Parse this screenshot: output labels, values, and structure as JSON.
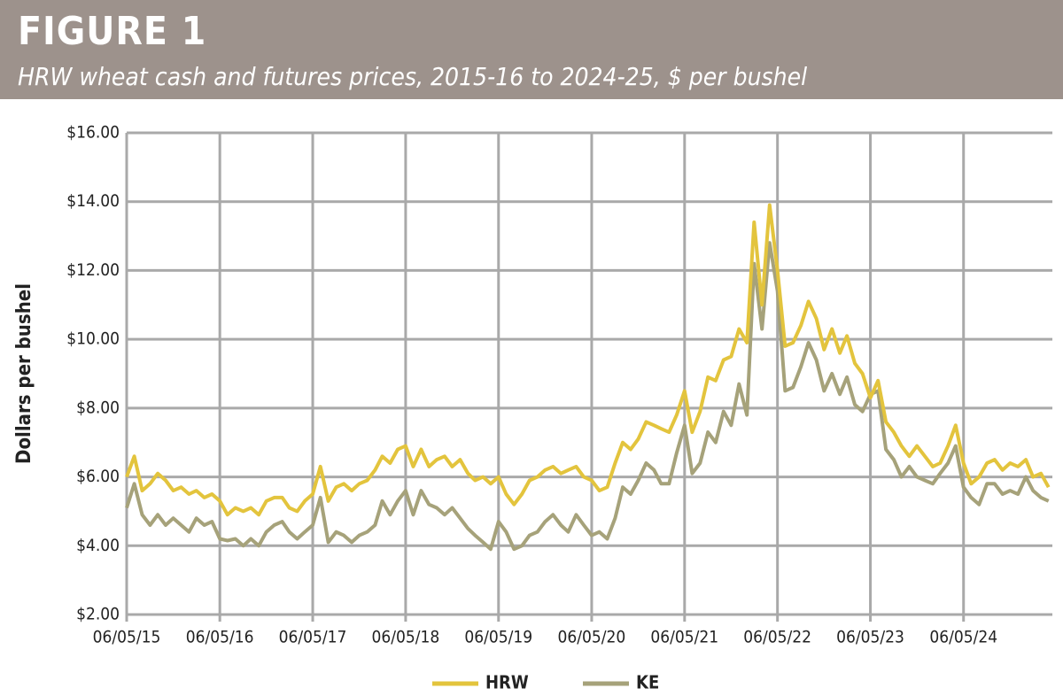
{
  "chart_data": {
    "type": "line",
    "title": "FIGURE 1",
    "subtitle": "HRW wheat cash and futures prices, 2015-16 to 2024-25, $ per bushel",
    "y_label": "Dollars per bushel",
    "x": [
      "2015-06-05",
      "2015-07-05",
      "2015-08-05",
      "2015-09-05",
      "2015-10-05",
      "2015-11-05",
      "2015-12-05",
      "2016-01-05",
      "2016-02-05",
      "2016-03-05",
      "2016-04-05",
      "2016-05-05",
      "2016-06-05",
      "2016-07-05",
      "2016-08-05",
      "2016-09-05",
      "2016-10-05",
      "2016-11-05",
      "2016-12-05",
      "2017-01-05",
      "2017-02-05",
      "2017-03-05",
      "2017-04-05",
      "2017-05-05",
      "2017-06-05",
      "2017-07-05",
      "2017-08-05",
      "2017-09-05",
      "2017-10-05",
      "2017-11-05",
      "2017-12-05",
      "2018-01-05",
      "2018-02-05",
      "2018-03-05",
      "2018-04-05",
      "2018-05-05",
      "2018-06-05",
      "2018-07-05",
      "2018-08-05",
      "2018-09-05",
      "2018-10-05",
      "2018-11-05",
      "2018-12-05",
      "2019-01-05",
      "2019-02-05",
      "2019-03-05",
      "2019-04-05",
      "2019-05-05",
      "2019-06-05",
      "2019-07-05",
      "2019-08-05",
      "2019-09-05",
      "2019-10-05",
      "2019-11-05",
      "2019-12-05",
      "2020-01-05",
      "2020-02-05",
      "2020-03-05",
      "2020-04-05",
      "2020-05-05",
      "2020-06-05",
      "2020-07-05",
      "2020-08-05",
      "2020-09-05",
      "2020-10-05",
      "2020-11-05",
      "2020-12-05",
      "2021-01-05",
      "2021-02-05",
      "2021-03-05",
      "2021-04-05",
      "2021-05-05",
      "2021-06-05",
      "2021-07-05",
      "2021-08-05",
      "2021-09-05",
      "2021-10-05",
      "2021-11-05",
      "2021-12-05",
      "2022-01-05",
      "2022-02-05",
      "2022-03-05",
      "2022-04-05",
      "2022-05-05",
      "2022-06-05",
      "2022-07-05",
      "2022-08-05",
      "2022-09-05",
      "2022-10-05",
      "2022-11-05",
      "2022-12-05",
      "2023-01-05",
      "2023-02-05",
      "2023-03-05",
      "2023-04-05",
      "2023-05-05",
      "2023-06-05",
      "2023-07-05",
      "2023-08-05",
      "2023-09-05",
      "2023-10-05",
      "2023-11-05",
      "2023-12-05",
      "2024-01-05",
      "2024-02-05",
      "2024-03-05",
      "2024-04-05",
      "2024-05-05",
      "2024-06-05",
      "2024-07-05",
      "2024-08-05",
      "2024-09-05",
      "2024-10-05",
      "2024-11-05",
      "2024-12-05",
      "2025-01-05",
      "2025-02-05",
      "2025-03-05",
      "2025-04-05",
      "2025-05-05"
    ],
    "series": [
      {
        "name": "HRW",
        "color": "#e3c43d",
        "values": [
          6.0,
          6.6,
          5.6,
          5.8,
          6.1,
          5.9,
          5.6,
          5.7,
          5.5,
          5.6,
          5.4,
          5.5,
          5.3,
          4.9,
          5.1,
          5.0,
          5.1,
          4.9,
          5.3,
          5.4,
          5.4,
          5.1,
          5.0,
          5.3,
          5.5,
          6.3,
          5.3,
          5.7,
          5.8,
          5.6,
          5.8,
          5.9,
          6.2,
          6.6,
          6.4,
          6.8,
          6.9,
          6.3,
          6.8,
          6.3,
          6.5,
          6.6,
          6.3,
          6.5,
          6.1,
          5.9,
          6.0,
          5.8,
          6.0,
          5.5,
          5.2,
          5.5,
          5.9,
          6.0,
          6.2,
          6.3,
          6.1,
          6.2,
          6.3,
          6.0,
          5.9,
          5.6,
          5.7,
          6.4,
          7.0,
          6.8,
          7.1,
          7.6,
          7.5,
          7.4,
          7.3,
          7.8,
          8.5,
          7.3,
          7.9,
          8.9,
          8.8,
          9.4,
          9.5,
          10.3,
          9.9,
          13.4,
          11.0,
          13.9,
          12.0,
          9.8,
          9.9,
          10.4,
          11.1,
          10.6,
          9.7,
          10.3,
          9.6,
          10.1,
          9.3,
          9.0,
          8.3,
          8.8,
          7.6,
          7.3,
          6.9,
          6.6,
          6.9,
          6.6,
          6.3,
          6.4,
          6.9,
          7.5,
          6.4,
          5.8,
          6.0,
          6.4,
          6.5,
          6.2,
          6.4,
          6.3,
          6.5,
          6.0,
          6.1,
          5.7
        ]
      },
      {
        "name": "KE",
        "color": "#a6a27a",
        "values": [
          5.1,
          5.8,
          4.9,
          4.6,
          4.9,
          4.6,
          4.8,
          4.6,
          4.4,
          4.8,
          4.6,
          4.7,
          4.2,
          4.15,
          4.2,
          4.0,
          4.2,
          4.0,
          4.4,
          4.6,
          4.7,
          4.4,
          4.2,
          4.4,
          4.6,
          5.4,
          4.1,
          4.4,
          4.3,
          4.1,
          4.3,
          4.4,
          4.6,
          5.3,
          4.9,
          5.3,
          5.6,
          4.9,
          5.6,
          5.2,
          5.1,
          4.9,
          5.1,
          4.8,
          4.5,
          4.3,
          4.1,
          3.9,
          4.7,
          4.4,
          3.9,
          4.0,
          4.3,
          4.4,
          4.7,
          4.9,
          4.6,
          4.4,
          4.9,
          4.6,
          4.3,
          4.4,
          4.2,
          4.8,
          5.7,
          5.5,
          5.9,
          6.4,
          6.2,
          5.8,
          5.8,
          6.7,
          7.5,
          6.1,
          6.4,
          7.3,
          7.0,
          7.9,
          7.5,
          8.7,
          7.8,
          12.2,
          10.3,
          12.8,
          11.4,
          8.5,
          8.6,
          9.2,
          9.9,
          9.4,
          8.5,
          9.0,
          8.4,
          8.9,
          8.1,
          7.9,
          8.4,
          8.5,
          6.8,
          6.5,
          6.0,
          6.3,
          6.0,
          5.9,
          5.8,
          6.1,
          6.4,
          6.9,
          5.7,
          5.4,
          5.2,
          5.8,
          5.8,
          5.5,
          5.6,
          5.5,
          6.0,
          5.6,
          5.4,
          5.3
        ]
      }
    ],
    "xlim": [
      "2015-06-05",
      "2025-05-20"
    ],
    "xticks": [
      {
        "value": "2015-06-05",
        "label": "06/05/15"
      },
      {
        "value": "2016-06-05",
        "label": "06/05/16"
      },
      {
        "value": "2017-06-05",
        "label": "06/05/17"
      },
      {
        "value": "2018-06-05",
        "label": "06/05/18"
      },
      {
        "value": "2019-06-05",
        "label": "06/05/19"
      },
      {
        "value": "2020-06-05",
        "label": "06/05/20"
      },
      {
        "value": "2021-06-05",
        "label": "06/05/21"
      },
      {
        "value": "2022-06-05",
        "label": "06/05/22"
      },
      {
        "value": "2023-06-05",
        "label": "06/05/23"
      },
      {
        "value": "2024-06-05",
        "label": "06/05/24"
      }
    ],
    "ylim": [
      2,
      16
    ],
    "yticks": [
      {
        "value": 2,
        "label": "$2.00"
      },
      {
        "value": 4,
        "label": "$4.00"
      },
      {
        "value": 6,
        "label": "$6.00"
      },
      {
        "value": 8,
        "label": "$8.00"
      },
      {
        "value": 10,
        "label": "$10.00"
      },
      {
        "value": 12,
        "label": "$12.00"
      },
      {
        "value": 14,
        "label": "$14.00"
      },
      {
        "value": 16,
        "label": "$16.00"
      }
    ],
    "grid": true
  }
}
